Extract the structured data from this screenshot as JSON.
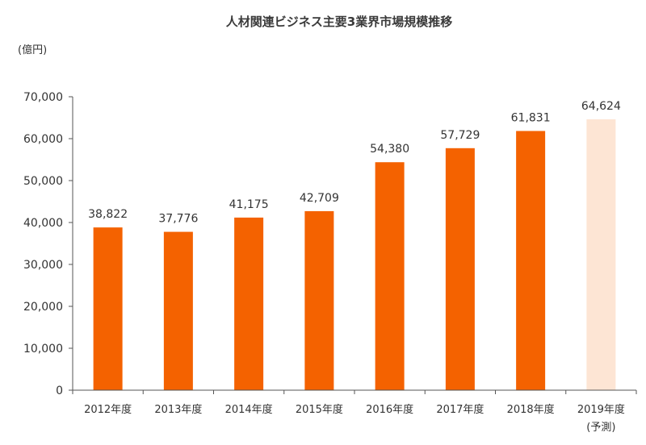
{
  "chart_data": {
    "type": "bar",
    "title": "人材関連ビジネス主要3業界市場規模推移",
    "ylabel": "(億円)",
    "xlabel": "",
    "categories": [
      "2012年度",
      "2013年度",
      "2014年度",
      "2015年度",
      "2016年度",
      "2017年度",
      "2018年度",
      "2019年度"
    ],
    "category_notes": [
      "",
      "",
      "",
      "",
      "",
      "",
      "",
      "(予測)"
    ],
    "values": [
      38822,
      37776,
      41175,
      42709,
      54380,
      57729,
      61831,
      64624
    ],
    "value_labels": [
      "38,822",
      "37,776",
      "41,175",
      "42,709",
      "54,380",
      "57,729",
      "61,831",
      "64,624"
    ],
    "forecast": [
      false,
      false,
      false,
      false,
      false,
      false,
      false,
      true
    ],
    "ylim": [
      0,
      70000
    ],
    "yticks": [
      0,
      10000,
      20000,
      30000,
      40000,
      50000,
      60000,
      70000
    ],
    "ytick_labels": [
      "0",
      "10,000",
      "20,000",
      "30,000",
      "40,000",
      "50,000",
      "60,000",
      "70,000"
    ],
    "grid": false,
    "colors": {
      "bar": "#f46200",
      "forecast_bar": "#fde5d4",
      "axis": "#555555"
    }
  }
}
